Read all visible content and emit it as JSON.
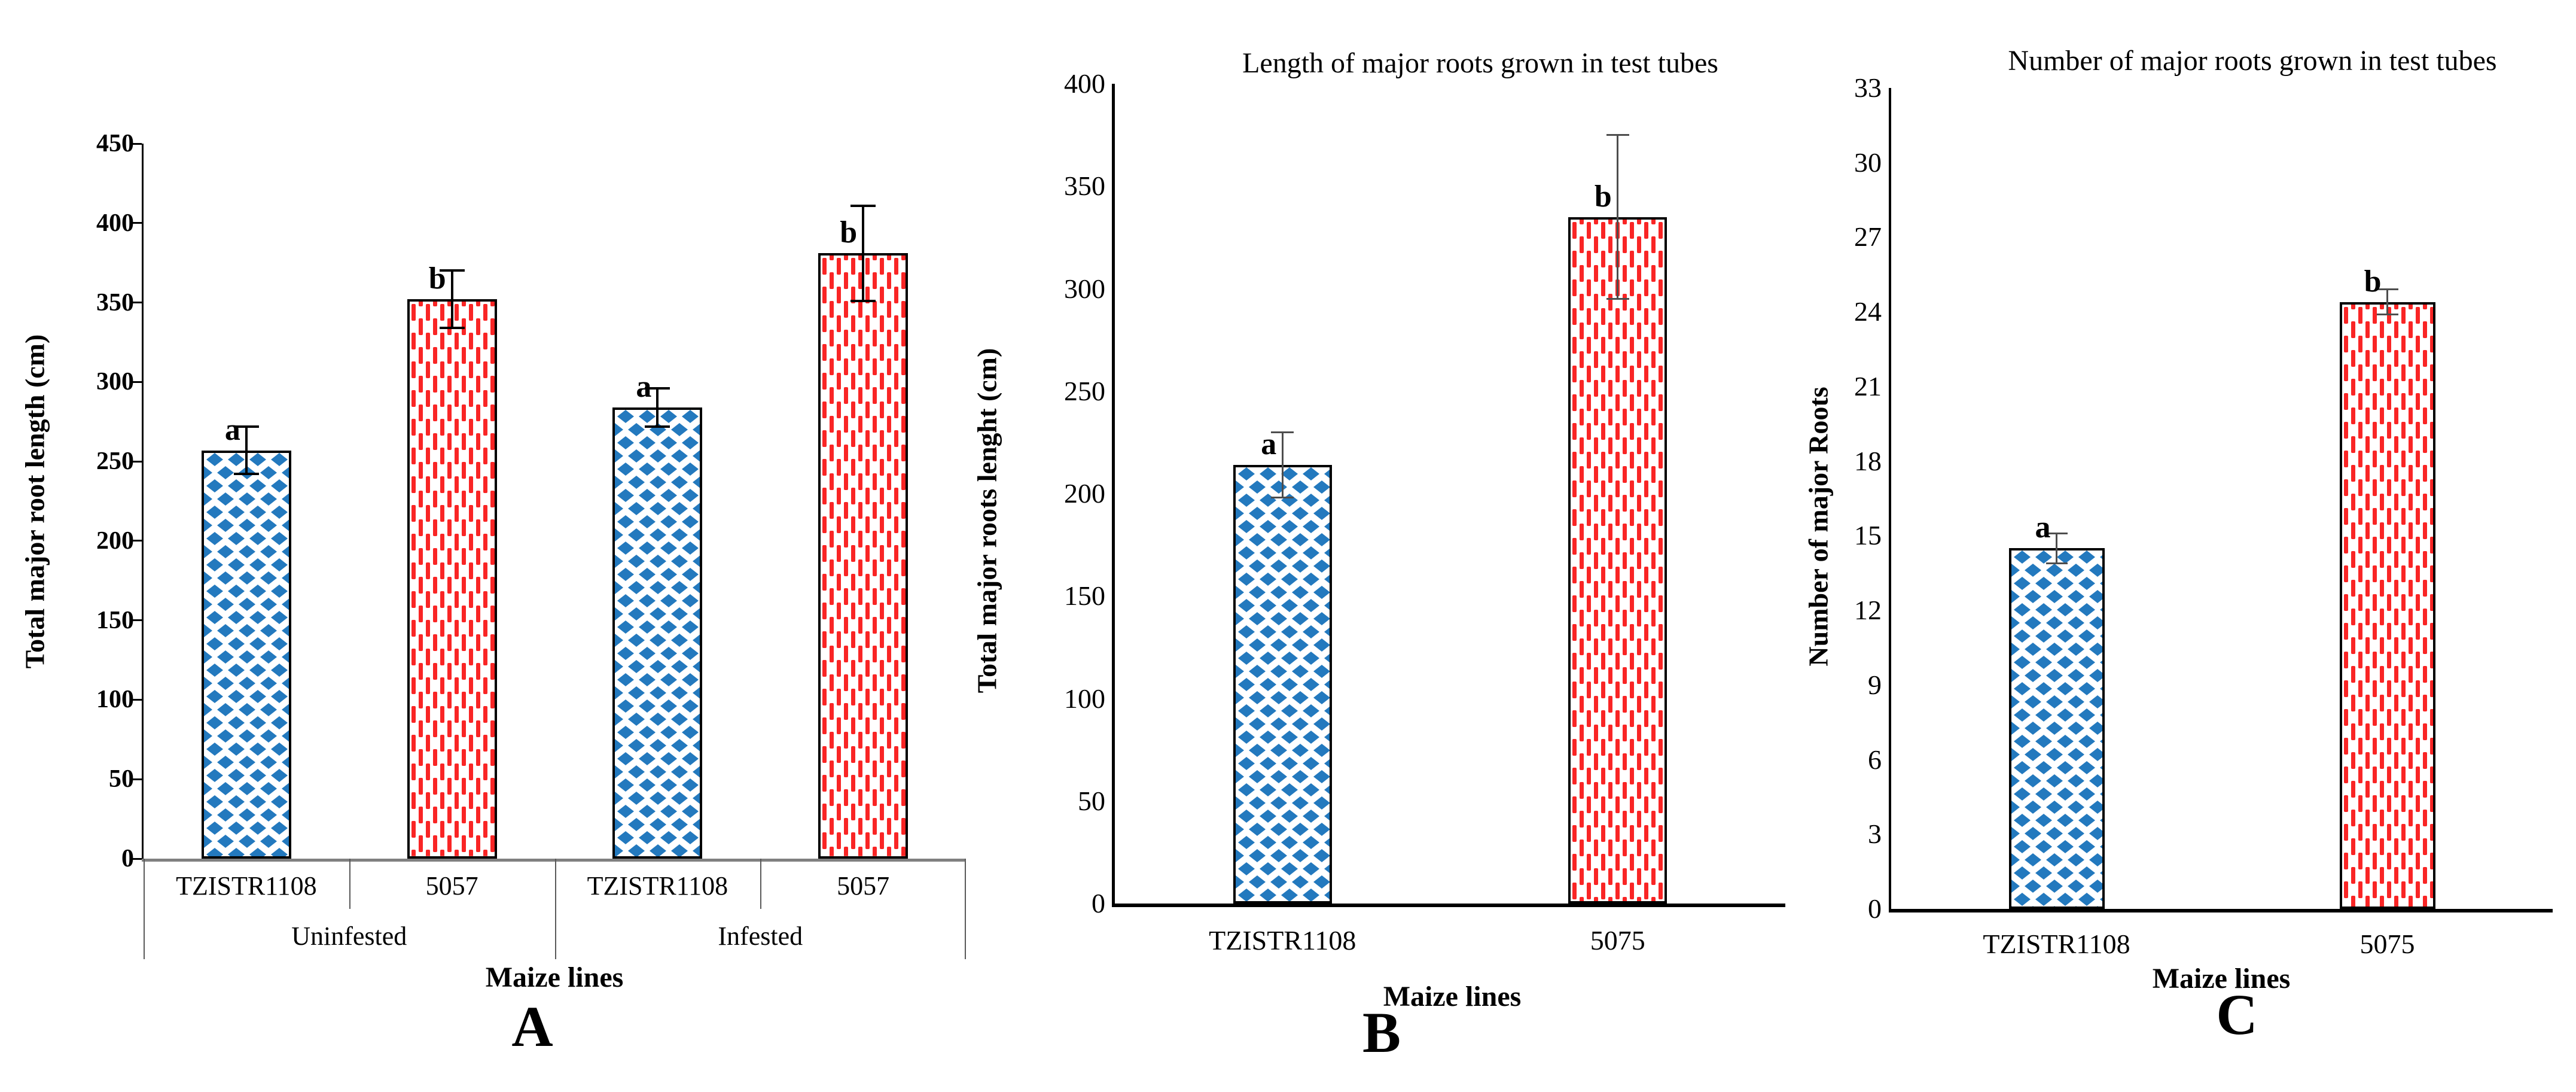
{
  "colors": {
    "bar_blue": "#2379be",
    "bar_red": "#f92525",
    "error_black": "#000000",
    "error_gray": "#4d4d4d",
    "axis_black": "#000000",
    "baseline_gray": "#808080",
    "box_line_gray": "#595959"
  },
  "chart_data": [
    {
      "id": "A",
      "type": "bar",
      "panel_label": "A",
      "title": "",
      "ylabel": "Total major root length (cm)",
      "xlabel": "Maize lines",
      "ylim": [
        0,
        450
      ],
      "ytick_step": 50,
      "ytick_labels": [
        "450",
        "400",
        "350",
        "300",
        "250",
        "200",
        "150",
        "100",
        "50",
        "0"
      ],
      "categories": [
        "TZISTR1108",
        "5057",
        "TZISTR1108",
        "5057"
      ],
      "group_labels": [
        "Uninfested",
        "Infested"
      ],
      "grid": false,
      "legend": null,
      "bars": [
        {
          "category": "TZISTR1108",
          "group": "Uninfested",
          "value": 257,
          "error": 15,
          "sig_letter": "a",
          "style": "blue-diamond"
        },
        {
          "category": "5057",
          "group": "Uninfested",
          "value": 352,
          "error": 18,
          "sig_letter": "b",
          "style": "red-dash"
        },
        {
          "category": "TZISTR1108",
          "group": "Infested",
          "value": 284,
          "error": 12,
          "sig_letter": "a",
          "style": "blue-diamond"
        },
        {
          "category": "5057",
          "group": "Infested",
          "value": 381,
          "error": 30,
          "sig_letter": "b",
          "style": "red-dash"
        }
      ]
    },
    {
      "id": "B",
      "type": "bar",
      "panel_label": "B",
      "title": "Length of major roots grown in test tubes",
      "ylabel": "Total major roots lenght (cm)",
      "xlabel": "Maize lines",
      "ylim": [
        0,
        400
      ],
      "ytick_step": 50,
      "ytick_labels": [
        "400",
        "350",
        "300",
        "250",
        "200",
        "150",
        "100",
        "50",
        "0"
      ],
      "categories": [
        "TZISTR1108",
        "5075"
      ],
      "group_labels": null,
      "grid": false,
      "legend": null,
      "bars": [
        {
          "category": "TZISTR1108",
          "value": 214,
          "error": 16,
          "sig_letter": "a",
          "style": "blue-diamond"
        },
        {
          "category": "5075",
          "value": 335,
          "error": 40,
          "sig_letter": "b",
          "style": "red-dash"
        }
      ]
    },
    {
      "id": "C",
      "type": "bar",
      "panel_label": "C",
      "title": "Number of major roots grown in test tubes",
      "ylabel": "Number of major Roots",
      "xlabel": "Maize lines",
      "ylim": [
        0,
        33
      ],
      "ytick_step": 3,
      "ytick_labels": [
        "33",
        "30",
        "27",
        "24",
        "21",
        "18",
        "15",
        "12",
        "9",
        "6",
        "3",
        "0"
      ],
      "categories": [
        "TZISTR1108",
        "5075"
      ],
      "group_labels": null,
      "grid": false,
      "legend": null,
      "bars": [
        {
          "category": "TZISTR1108",
          "value": 14.5,
          "error": 0.6,
          "sig_letter": "a",
          "style": "blue-diamond"
        },
        {
          "category": "5075",
          "value": 24.4,
          "error": 0.5,
          "sig_letter": "b",
          "style": "red-dash"
        }
      ]
    }
  ]
}
